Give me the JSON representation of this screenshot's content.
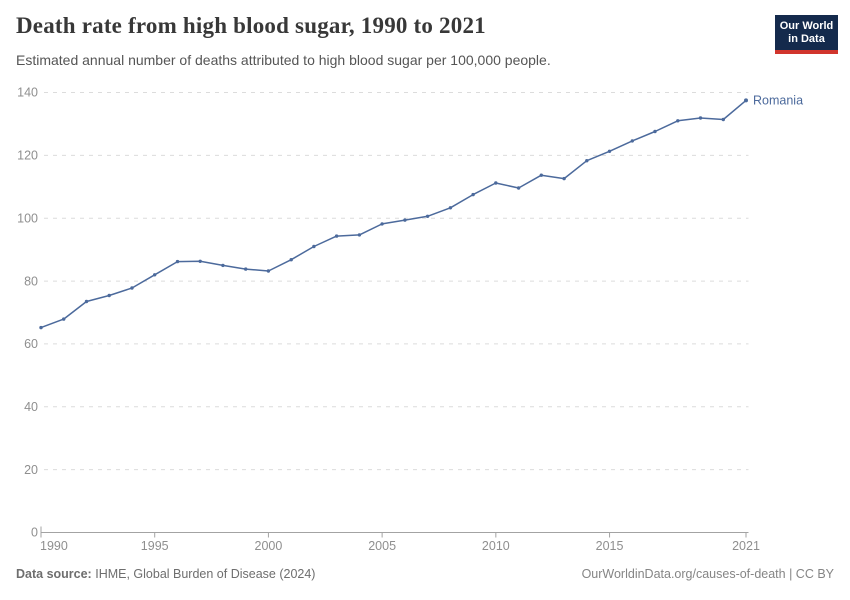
{
  "header": {
    "title": "Death rate from high blood sugar, 1990 to 2021",
    "subtitle": "Estimated annual number of deaths attributed to high blood sugar per 100,000 people."
  },
  "logo": {
    "line1": "Our World",
    "line2": "in Data"
  },
  "chart_data": {
    "type": "line",
    "title": "Death rate from high blood sugar, 1990 to 2021",
    "xlabel": "",
    "ylabel": "",
    "xlim": [
      1990,
      2021
    ],
    "ylim": [
      0,
      140
    ],
    "x_ticks": [
      1990,
      1995,
      2000,
      2005,
      2010,
      2015,
      2021
    ],
    "y_ticks": [
      0,
      20,
      40,
      60,
      80,
      100,
      120,
      140
    ],
    "grid": "horizontal-dashed",
    "legend_position": "end-of-line-label",
    "series": [
      {
        "name": "Romania",
        "color": "#4C6A9C",
        "x": [
          1990,
          1991,
          1992,
          1993,
          1994,
          1995,
          1996,
          1997,
          1998,
          1999,
          2000,
          2001,
          2002,
          2003,
          2004,
          2005,
          2006,
          2007,
          2008,
          2009,
          2010,
          2011,
          2012,
          2013,
          2014,
          2015,
          2016,
          2017,
          2018,
          2019,
          2020,
          2021
        ],
        "values": [
          65.2,
          67.9,
          73.5,
          75.4,
          77.8,
          82.0,
          86.2,
          86.3,
          85.0,
          83.8,
          83.2,
          86.8,
          91.0,
          94.3,
          94.7,
          98.2,
          99.4,
          100.6,
          103.3,
          107.5,
          111.2,
          109.6,
          113.7,
          112.6,
          118.3,
          121.3,
          124.6,
          127.6,
          131.0,
          131.9,
          131.4,
          137.5
        ]
      }
    ]
  },
  "footer": {
    "source_label": "Data source:",
    "source_value": "IHME, Global Burden of Disease (2024)",
    "attribution": "OurWorldinData.org/causes-of-death | CC BY"
  },
  "colors": {
    "line": "#4C6A9C",
    "grid": "#dcdcdc",
    "axis": "#a3a3a3",
    "tick_label": "#8f8f8f",
    "title": "#383838",
    "subtitle": "#555555",
    "footer_text": "#6e6e6e",
    "attribution_text": "#858585",
    "logo_bg": "#142a4c",
    "logo_accent": "#d1352d"
  }
}
